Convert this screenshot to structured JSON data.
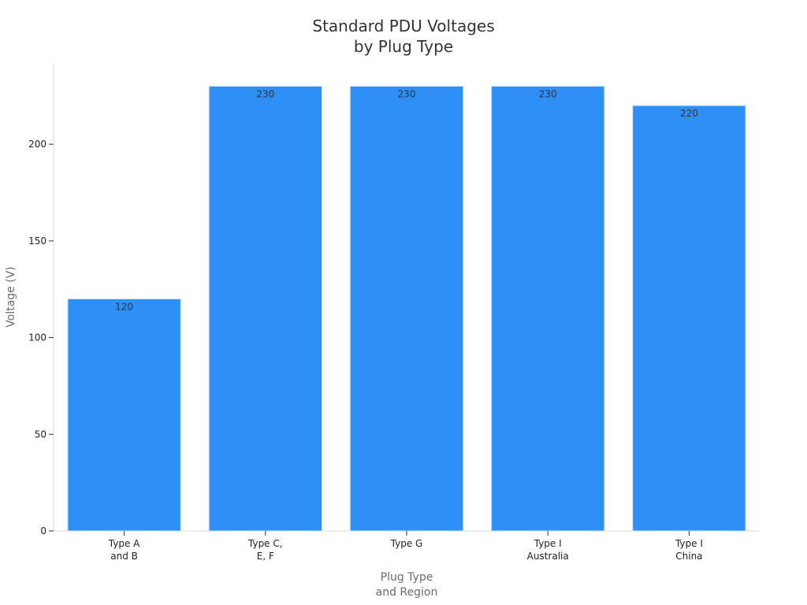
{
  "chart_data": {
    "type": "bar",
    "title_lines": [
      "Standard PDU Voltages",
      "by Plug Type"
    ],
    "xlabel_lines": [
      "Plug Type",
      "and Region"
    ],
    "ylabel": "Voltage (V)",
    "categories": [
      [
        "Type A",
        "and B"
      ],
      [
        "Type C,",
        "E, F"
      ],
      [
        "Type G"
      ],
      [
        "Type I",
        "Australia"
      ],
      [
        "Type I",
        "China"
      ]
    ],
    "values": [
      120,
      230,
      230,
      230,
      220
    ],
    "data_labels": [
      "120",
      "230",
      "230",
      "230",
      "220"
    ],
    "yticks": [
      0,
      50,
      100,
      150,
      200
    ],
    "ylim": [
      0,
      242
    ],
    "bar_color": "#2e90f7",
    "grid": false,
    "legend": "none"
  }
}
